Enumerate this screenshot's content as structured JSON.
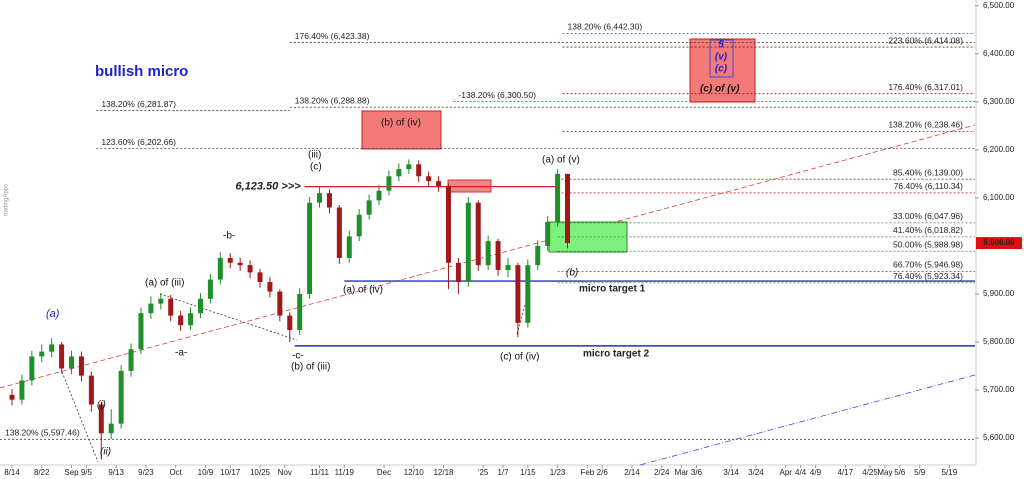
{
  "chart_data": {
    "type": "candlestick",
    "title": "bullish micro",
    "watermark": "tradingApps",
    "up_color": "#1f8f2a",
    "down_color": "#a11818",
    "xlim": [
      -2.42,
      194.16
    ],
    "ylim": [
      5544,
      6512
    ],
    "x": [
      0,
      2,
      4,
      6,
      8,
      10,
      12,
      14,
      16,
      18,
      20,
      22,
      24,
      26,
      28,
      30,
      32,
      34,
      36,
      38,
      40,
      42,
      44,
      46,
      48,
      50,
      52,
      54,
      56,
      58,
      60,
      62,
      64,
      66,
      68,
      70,
      72,
      74,
      76,
      78,
      80,
      82,
      84,
      86,
      88,
      90,
      92,
      94,
      96,
      98,
      100,
      102,
      104,
      106,
      108,
      110,
      112
    ],
    "open": [
      5690,
      5680,
      5720,
      5770,
      5780,
      5795,
      5745,
      5770,
      5730,
      5670,
      5610,
      5630,
      5740,
      5785,
      5860,
      5880,
      5890,
      5855,
      5835,
      5860,
      5890,
      5930,
      5975,
      5965,
      5960,
      5945,
      5925,
      5905,
      5855,
      5825,
      5900,
      6090,
      6110,
      6080,
      5975,
      6020,
      6065,
      6095,
      6115,
      6145,
      6160,
      6170,
      6145,
      6135,
      6125,
      5965,
      5925,
      6090,
      5960,
      6010,
      5950,
      5960,
      5840,
      5960,
      6000,
      6050,
      6150
    ],
    "high": [
      5702,
      5732,
      5782,
      5795,
      5808,
      5800,
      5782,
      5780,
      5738,
      5675,
      5660,
      5752,
      5797,
      5872,
      5895,
      5902,
      5898,
      5865,
      5872,
      5902,
      5942,
      5987,
      5985,
      5975,
      5970,
      5952,
      5935,
      5910,
      5862,
      5912,
      6102,
      6125,
      6118,
      6085,
      6032,
      6077,
      6107,
      6127,
      6157,
      6172,
      6180,
      6178,
      6155,
      6145,
      6130,
      5975,
      6102,
      6095,
      6022,
      6015,
      5975,
      5965,
      5972,
      6012,
      6062,
      6160,
      6150
    ],
    "low": [
      5668,
      5670,
      5710,
      5758,
      5768,
      5735,
      5733,
      5718,
      5655,
      5555,
      5598,
      5620,
      5728,
      5775,
      5848,
      5868,
      5843,
      5823,
      5825,
      5850,
      5880,
      5920,
      5953,
      5948,
      5933,
      5913,
      5893,
      5843,
      5800,
      5815,
      5890,
      6080,
      6068,
      5963,
      5965,
      6010,
      6055,
      6085,
      6105,
      6135,
      6150,
      6133,
      6123,
      6113,
      5910,
      5900,
      5915,
      5948,
      5950,
      5938,
      5935,
      5810,
      5830,
      5950,
      5990,
      6040,
      5995
    ],
    "close": [
      5680,
      5720,
      5770,
      5780,
      5795,
      5745,
      5770,
      5730,
      5670,
      5610,
      5630,
      5740,
      5785,
      5860,
      5880,
      5890,
      5855,
      5835,
      5860,
      5890,
      5930,
      5975,
      5965,
      5960,
      5945,
      5925,
      5905,
      5855,
      5825,
      5900,
      6090,
      6110,
      6080,
      5975,
      6020,
      6065,
      6095,
      6115,
      6145,
      6160,
      6170,
      6145,
      6135,
      6125,
      5965,
      5925,
      6090,
      5960,
      6010,
      5950,
      5960,
      5840,
      5960,
      6000,
      6050,
      6150,
      6006
    ],
    "last_price": {
      "value": 6006,
      "label": "6,006.00"
    },
    "yticks": [
      {
        "value": 6500,
        "label": "6,500.00"
      },
      {
        "value": 6400,
        "label": "6,400.00"
      },
      {
        "value": 6300,
        "label": "6,300.00"
      },
      {
        "value": 6200,
        "label": "6,200.00"
      },
      {
        "value": 6100,
        "label": "6,100.00"
      },
      {
        "value": 5900,
        "label": "5,900.00"
      },
      {
        "value": 5800,
        "label": "5,800.00"
      },
      {
        "value": 5700,
        "label": "5,700.00"
      },
      {
        "value": 5600,
        "label": "5,600.00"
      }
    ],
    "xticks": [
      {
        "value": 0,
        "label": "8/14"
      },
      {
        "value": 6,
        "label": "8/22"
      },
      {
        "value": 12,
        "label": "Sep"
      },
      {
        "value": 15,
        "label": "9/5"
      },
      {
        "value": 21,
        "label": "9/13"
      },
      {
        "value": 27,
        "label": "9/23"
      },
      {
        "value": 33,
        "label": "Oct"
      },
      {
        "value": 39,
        "label": "10/9"
      },
      {
        "value": 44,
        "label": "10/17"
      },
      {
        "value": 50,
        "label": "10/25"
      },
      {
        "value": 55,
        "label": "Nov"
      },
      {
        "value": 62,
        "label": "11/11"
      },
      {
        "value": 67,
        "label": "11/19"
      },
      {
        "value": 75,
        "label": "Dec"
      },
      {
        "value": 81,
        "label": "12/10"
      },
      {
        "value": 87,
        "label": "12/18"
      },
      {
        "value": 95,
        "label": "'25"
      },
      {
        "value": 99,
        "label": "1/7"
      },
      {
        "value": 104,
        "label": "1/15"
      },
      {
        "value": 110,
        "label": "1/23"
      },
      {
        "value": 116,
        "label": "Feb"
      },
      {
        "value": 119,
        "label": "2/6"
      },
      {
        "value": 125,
        "label": "2/14"
      },
      {
        "value": 131,
        "label": "2/24"
      },
      {
        "value": 135,
        "label": "Mar"
      },
      {
        "value": 138,
        "label": "3/6"
      },
      {
        "value": 145,
        "label": "3/14"
      },
      {
        "value": 150,
        "label": "3/24"
      },
      {
        "value": 156,
        "label": "Apr"
      },
      {
        "value": 159,
        "label": "4/4"
      },
      {
        "value": 162,
        "label": "4/9"
      },
      {
        "value": 168,
        "label": "4/17"
      },
      {
        "value": 173,
        "label": "4/25"
      },
      {
        "value": 176,
        "label": "May"
      },
      {
        "value": 179,
        "label": "5/6"
      },
      {
        "value": 183,
        "label": "5/9"
      },
      {
        "value": 189,
        "label": "5/19"
      }
    ],
    "levels": [
      {
        "label": "138.20% (6,442.30)",
        "value": 6442.3,
        "color": "#3b4bdc",
        "from": 111,
        "side": "left"
      },
      {
        "label": "176.40% (6,423.38)",
        "value": 6423.38,
        "color": "#444444",
        "from": 56,
        "side": "left"
      },
      {
        "label": "223.60% (6,414.08)",
        "value": 6414.08,
        "color": "#8b1a1a",
        "from": 111,
        "side": "right"
      },
      {
        "label": "176.40% (6,317.01)",
        "value": 6317.01,
        "color": "#8b1a1a",
        "from": 111,
        "side": "right"
      },
      {
        "label": "-138.20% (6,300.50)",
        "value": 6300.5,
        "color": "#d62020",
        "from": 89,
        "side": "left"
      },
      {
        "label": "138.20% (6,288.88)",
        "value": 6288.88,
        "color": "#444444",
        "from": 56,
        "side": "left"
      },
      {
        "label": "138.20% (6,281.87)",
        "value": 6281.87,
        "color": "#444444",
        "from": 17,
        "to": 56,
        "side": "left"
      },
      {
        "label": "138.20% (6,238.46)",
        "value": 6238.46,
        "color": "#8b1a1a",
        "from": 111,
        "side": "right"
      },
      {
        "label": "123.60% (6,202.66)",
        "value": 6202.66,
        "color": "#444444",
        "from": 17,
        "side": "left"
      },
      {
        "label": "85.40% (6,139.00)",
        "value": 6139.0,
        "color": "#8b3a1a",
        "from": 110,
        "side": "right"
      },
      {
        "label": "76.40% (6,110.34)",
        "value": 6110.34,
        "color": "#d62020",
        "from": 110,
        "side": "right"
      },
      {
        "label": "33.00% (6,047.96)",
        "value": 6047.96,
        "color": "#2e8b2e",
        "from": 110,
        "side": "right"
      },
      {
        "label": "41.40% (6,018.82)",
        "value": 6018.82,
        "color": "#2e8b2e",
        "from": 110,
        "side": "right"
      },
      {
        "label": "50.00% (5,988.98)",
        "value": 5988.98,
        "color": "#2e8b2e",
        "from": 110,
        "side": "right"
      },
      {
        "label": "66.70% (5,946.98)",
        "value": 5946.98,
        "color": "#2e8b2e",
        "from": 110,
        "side": "right"
      },
      {
        "label": "76.40% (5,923.34)",
        "value": 5923.34,
        "color": "#2e8b2e",
        "from": 110,
        "side": "right"
      },
      {
        "label": "138.20% (5,597.46)",
        "value": 5597.46,
        "color": "#444444",
        "from": -2.42,
        "side": "left"
      }
    ],
    "key_level": {
      "label": "6,123.50 >>>",
      "value": 6123.5,
      "color": "#e02020",
      "from": 59,
      "to": 110
    },
    "targets": [
      {
        "label": "micro target 1",
        "value": 5927,
        "color": "#2233bb",
        "from": 67
      },
      {
        "label": "micro target 2",
        "value": 5792,
        "color": "#2233bb",
        "from": 57
      }
    ],
    "annotations": [
      "(a)",
      "(i)",
      "(ii)",
      "(a) of (iii)",
      "-a-",
      "-b-",
      "-c-",
      "(b) of (iii)",
      "(iii)",
      "(c)",
      "(b) of (iv)",
      "(a) of (iv)",
      "(c) of (iv)",
      "(a) of (v)",
      "(b)",
      "(c) of (v)",
      "5",
      "(v)",
      "(c)"
    ]
  }
}
